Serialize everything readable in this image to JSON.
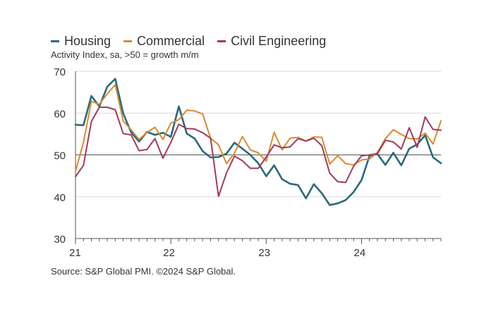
{
  "legend": {
    "items": [
      {
        "name": "Housing",
        "color": "#2b6a7a"
      },
      {
        "name": "Commercial",
        "color": "#d98b2f"
      },
      {
        "name": "Civil Engineering",
        "color": "#a13a5e"
      }
    ]
  },
  "subtitle": "Activity Index, sa, >50 = growth m/m",
  "source": "Source: S&P Global PMI. ©2024 S&P Global.",
  "chart_data": {
    "type": "line",
    "title": "",
    "xlabel": "",
    "ylabel": "Activity Index, sa, >50 = growth m/m",
    "x_period": "monthly, Jan 2021 – Nov 2024",
    "x_tick_labels": [
      {
        "label": "21",
        "index": 0
      },
      {
        "label": "22",
        "index": 12
      },
      {
        "label": "23",
        "index": 24
      },
      {
        "label": "24",
        "index": 36
      }
    ],
    "y_ticks": [
      30,
      40,
      50,
      60,
      70
    ],
    "ylim": [
      30,
      70
    ],
    "reference_line": 50,
    "grid": true,
    "series": [
      {
        "name": "Housing",
        "color": "#2b6a7a",
        "values": [
          57.2,
          57.1,
          64.1,
          61.6,
          66.3,
          68.2,
          59.9,
          55.4,
          53.2,
          55.5,
          54.8,
          55.3,
          54.3,
          61.6,
          55.1,
          53.9,
          50.9,
          49.4,
          49.5,
          50.3,
          52.9,
          51.5,
          50.0,
          48.0,
          44.9,
          47.5,
          44.2,
          43.1,
          42.8,
          39.6,
          43.0,
          40.8,
          38.0,
          38.4,
          39.2,
          41.1,
          44.0,
          49.8,
          50.2,
          47.6,
          50.5,
          47.5,
          51.5,
          52.5,
          54.7,
          49.4,
          48.0
        ]
      },
      {
        "name": "Commercial",
        "color": "#d98b2f",
        "values": [
          46.1,
          53.0,
          62.8,
          62.1,
          64.6,
          66.8,
          58.1,
          56.0,
          53.7,
          55.4,
          56.6,
          53.7,
          57.6,
          58.4,
          60.7,
          60.5,
          59.8,
          54.0,
          52.4,
          47.9,
          50.4,
          54.4,
          51.2,
          50.5,
          48.5,
          55.4,
          51.2,
          54.0,
          54.2,
          53.3,
          54.3,
          54.2,
          47.8,
          49.8,
          47.9,
          47.6,
          48.8,
          49.0,
          50.6,
          53.9,
          56.0,
          54.9,
          53.9,
          53.8,
          55.2,
          52.6,
          58.2
        ]
      },
      {
        "name": "Civil Engineering",
        "color": "#a13a5e",
        "values": [
          44.8,
          47.5,
          58.0,
          61.4,
          61.4,
          60.8,
          55.1,
          54.8,
          51.0,
          51.3,
          53.9,
          49.2,
          53.0,
          57.3,
          56.3,
          56.2,
          55.3,
          54.0,
          40.1,
          45.7,
          49.7,
          48.6,
          46.8,
          46.8,
          49.5,
          52.4,
          51.7,
          51.9,
          53.9,
          53.3,
          54.0,
          52.2,
          45.6,
          43.6,
          43.4,
          47.3,
          49.8,
          50.0,
          50.3,
          53.5,
          53.1,
          51.4,
          56.5,
          51.8,
          59.1,
          56.1,
          55.9
        ]
      }
    ]
  }
}
